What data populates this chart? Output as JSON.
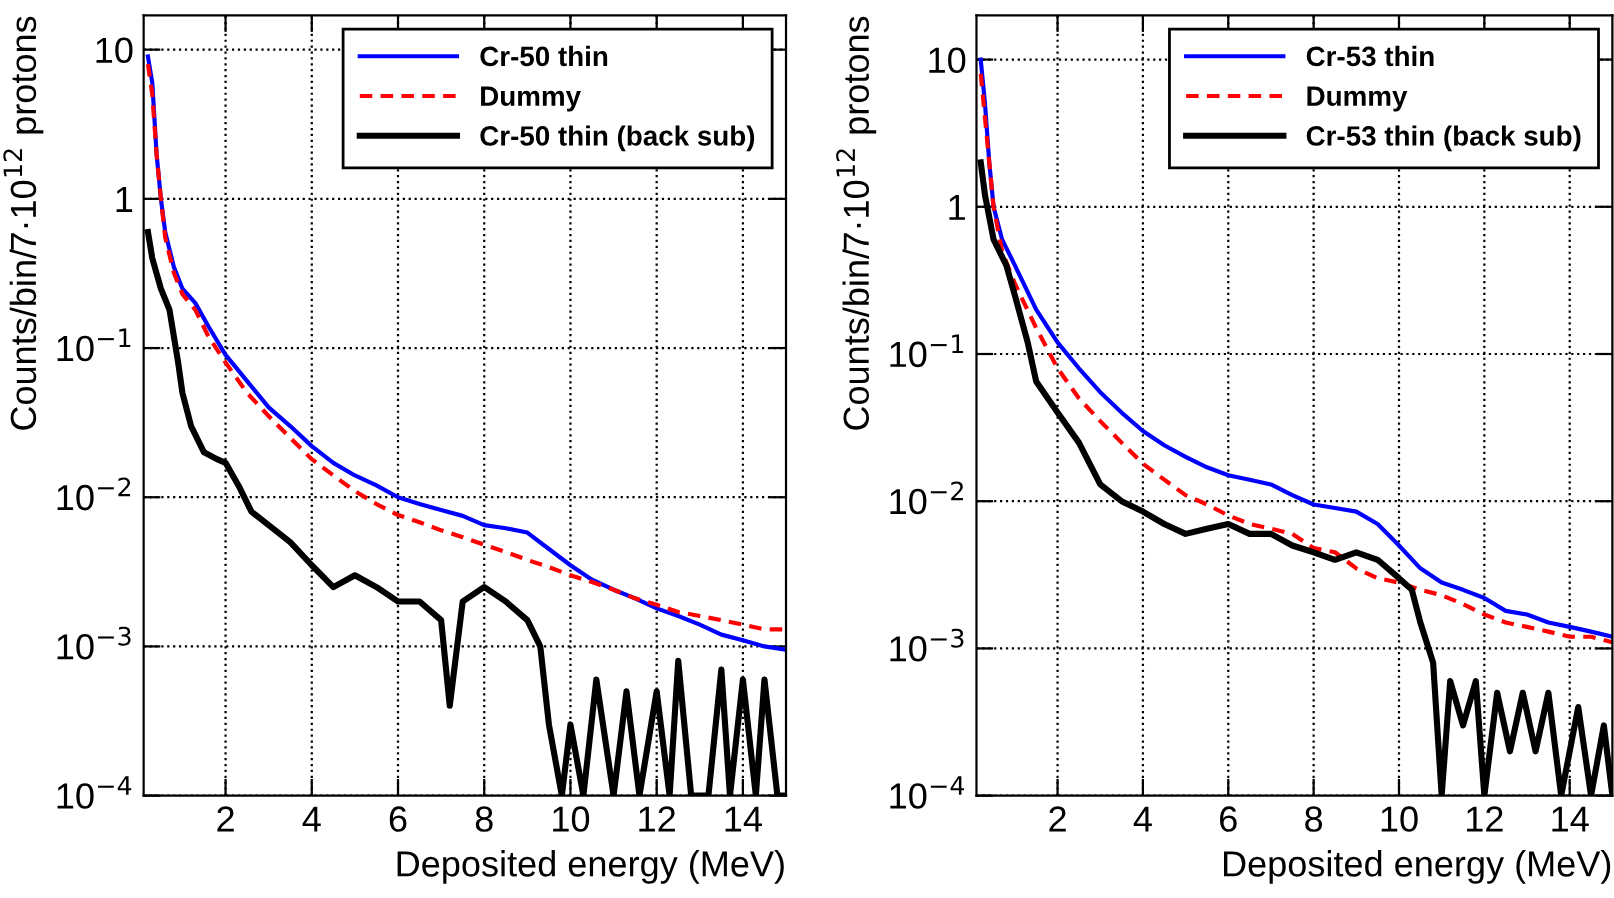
{
  "chart_data": [
    {
      "type": "line",
      "xlabel": "Deposited energy (MeV)",
      "ylabel": "Counts/bin/7·10$^{12}$ protons",
      "log": "y",
      "grid": true,
      "legend": "top right",
      "xlim": [
        0.1,
        15
      ],
      "xticks": [
        2,
        4,
        6,
        8,
        10,
        12,
        14
      ],
      "ylim": [
        0.0001,
        17
      ],
      "yticks": [
        {
          "value": 0.0001,
          "label": "10$^{−4}$"
        },
        {
          "value": 0.001,
          "label": "10$^{−3}$"
        },
        {
          "value": 0.01,
          "label": "10$^{−2}$"
        },
        {
          "value": 0.1,
          "label": "10$^{−1}$"
        },
        1,
        10
      ],
      "series": [
        {
          "name": "Cr-50 thin",
          "color": "#0000ff",
          "line_style": "solid",
          "x": [
            0.2,
            0.3,
            0.4,
            0.5,
            0.6,
            0.8,
            1.0,
            1.3,
            1.6,
            2.0,
            2.5,
            3.0,
            3.5,
            4.0,
            4.5,
            5.0,
            5.5,
            6.0,
            6.5,
            7.0,
            7.5,
            8.0,
            8.5,
            9.0,
            9.5,
            10.0,
            10.5,
            11.0,
            11.5,
            12.0,
            12.5,
            13.0,
            13.5,
            14.0,
            14.5,
            15.0
          ],
          "values": [
            9,
            6,
            2,
            1,
            0.6,
            0.35,
            0.25,
            0.2,
            0.14,
            0.09,
            0.06,
            0.04,
            0.03,
            0.022,
            0.017,
            0.014,
            0.012,
            0.01,
            0.009,
            0.0082,
            0.0075,
            0.0065,
            0.0062,
            0.0058,
            0.0045,
            0.0035,
            0.0028,
            0.0024,
            0.0021,
            0.0018,
            0.0016,
            0.0014,
            0.0012,
            0.0011,
            0.001,
            0.00095
          ]
        },
        {
          "name": "Dummy",
          "color": "#ff0000",
          "line_style": "dashed",
          "x": [
            0.2,
            0.3,
            0.4,
            0.5,
            0.6,
            0.8,
            1.0,
            1.3,
            1.6,
            2.0,
            2.5,
            3.0,
            3.5,
            4.0,
            4.5,
            5.0,
            5.5,
            6.0,
            6.5,
            7.0,
            7.5,
            8.0,
            8.5,
            9.0,
            9.5,
            10.0,
            10.5,
            11.0,
            11.5,
            12.0,
            12.5,
            13.0,
            13.5,
            14.0,
            14.5,
            15.0
          ],
          "values": [
            8,
            5,
            2,
            1,
            0.55,
            0.32,
            0.23,
            0.18,
            0.12,
            0.08,
            0.05,
            0.035,
            0.025,
            0.018,
            0.014,
            0.011,
            0.009,
            0.0076,
            0.0068,
            0.006,
            0.0054,
            0.0048,
            0.0043,
            0.0038,
            0.0034,
            0.003,
            0.0027,
            0.0024,
            0.0021,
            0.0019,
            0.0017,
            0.0016,
            0.0015,
            0.0014,
            0.0013,
            0.0013
          ]
        },
        {
          "name": "Cr-50 thin (back sub)",
          "color": "#000000",
          "line_style": "solid",
          "x": [
            0.2,
            0.3,
            0.5,
            0.7,
            0.9,
            1.0,
            1.2,
            1.5,
            1.8,
            2.0,
            2.3,
            2.6,
            3.0,
            3.5,
            4.0,
            4.5,
            5.0,
            5.5,
            6.0,
            6.5,
            7.0,
            7.2,
            7.5,
            8.0,
            8.5,
            9.0,
            9.3,
            9.5,
            9.8,
            10.0,
            10.3,
            10.6,
            11.0,
            11.3,
            11.6,
            12.0,
            12.3,
            12.5,
            12.8,
            13.2,
            13.5,
            13.7,
            14.0,
            14.3,
            14.5,
            14.8,
            15.0
          ],
          "values": [
            0.6,
            0.4,
            0.25,
            0.18,
            0.08,
            0.05,
            0.03,
            0.02,
            0.018,
            0.017,
            0.012,
            0.008,
            0.0065,
            0.005,
            0.0035,
            0.0025,
            0.003,
            0.0025,
            0.002,
            0.002,
            0.0015,
            0.0004,
            0.002,
            0.0025,
            0.002,
            0.0015,
            0.001,
            0.0003,
            0.0001,
            0.0003,
            0.0001,
            0.0006,
            0.0001,
            0.0005,
            0.0001,
            0.0005,
            0.0001,
            0.0008,
            0.0001,
            0.0001,
            0.0007,
            0.0001,
            0.0006,
            0.0001,
            0.0006,
            0.0001,
            0.0001
          ]
        }
      ]
    },
    {
      "type": "line",
      "xlabel": "Deposited energy (MeV)",
      "ylabel": "Counts/bin/7·10$^{12}$ protons",
      "log": "y",
      "grid": true,
      "legend": "top right",
      "xlim": [
        0.1,
        15
      ],
      "xticks": [
        2,
        4,
        6,
        8,
        10,
        12,
        14
      ],
      "ylim": [
        0.0001,
        20
      ],
      "yticks": [
        {
          "value": 0.0001,
          "label": "10$^{−4}$"
        },
        {
          "value": 0.001,
          "label": "10$^{−3}$"
        },
        {
          "value": 0.01,
          "label": "10$^{−2}$"
        },
        {
          "value": 0.1,
          "label": "10$^{−1}$"
        },
        1,
        10
      ],
      "series": [
        {
          "name": "Cr-53 thin",
          "color": "#0000ff",
          "line_style": "solid",
          "x": [
            0.2,
            0.3,
            0.4,
            0.5,
            0.7,
            1.0,
            1.5,
            2.0,
            2.5,
            3.0,
            3.5,
            4.0,
            4.5,
            5.0,
            5.5,
            6.0,
            6.5,
            7.0,
            7.5,
            8.0,
            8.5,
            9.0,
            9.5,
            10.0,
            10.5,
            11.0,
            11.5,
            12.0,
            12.5,
            13.0,
            13.5,
            14.0,
            14.5,
            15.0
          ],
          "values": [
            10,
            5,
            2,
            1,
            0.6,
            0.4,
            0.2,
            0.12,
            0.08,
            0.055,
            0.04,
            0.03,
            0.024,
            0.02,
            0.017,
            0.015,
            0.014,
            0.013,
            0.011,
            0.0095,
            0.009,
            0.0085,
            0.007,
            0.005,
            0.0035,
            0.0028,
            0.0025,
            0.0022,
            0.0018,
            0.0017,
            0.0015,
            0.0014,
            0.0013,
            0.0012
          ]
        },
        {
          "name": "Dummy",
          "color": "#ff0000",
          "line_style": "dashed",
          "x": [
            0.2,
            0.3,
            0.5,
            0.7,
            1.0,
            1.5,
            2.0,
            2.5,
            3.0,
            3.5,
            4.0,
            4.5,
            5.0,
            5.5,
            6.0,
            6.5,
            7.0,
            7.5,
            8.0,
            8.5,
            9.0,
            9.5,
            10.0,
            10.5,
            11.0,
            11.5,
            12.0,
            12.5,
            13.0,
            13.5,
            14.0,
            14.5,
            15.0
          ],
          "values": [
            8,
            4,
            1,
            0.5,
            0.3,
            0.15,
            0.08,
            0.05,
            0.035,
            0.025,
            0.018,
            0.014,
            0.011,
            0.0095,
            0.008,
            0.007,
            0.0065,
            0.006,
            0.0048,
            0.0045,
            0.0035,
            0.003,
            0.0028,
            0.0025,
            0.0023,
            0.002,
            0.0017,
            0.0015,
            0.0014,
            0.0013,
            0.0012,
            0.0012,
            0.0011
          ]
        },
        {
          "name": "Cr-53 thin (back sub)",
          "color": "#000000",
          "line_style": "solid",
          "x": [
            0.2,
            0.3,
            0.5,
            0.8,
            1.0,
            1.3,
            1.5,
            2.0,
            2.5,
            3.0,
            3.5,
            4.0,
            4.5,
            5.0,
            5.5,
            6.0,
            6.5,
            7.0,
            7.5,
            8.0,
            8.5,
            9.0,
            9.5,
            10.0,
            10.3,
            10.5,
            10.8,
            11.0,
            11.2,
            11.5,
            11.8,
            12.0,
            12.3,
            12.6,
            12.9,
            13.2,
            13.5,
            13.8,
            14.2,
            14.5,
            14.8,
            15.0
          ],
          "values": [
            2,
            1.2,
            0.6,
            0.4,
            0.25,
            0.12,
            0.065,
            0.04,
            0.025,
            0.013,
            0.01,
            0.0085,
            0.007,
            0.006,
            0.0065,
            0.007,
            0.006,
            0.006,
            0.005,
            0.0045,
            0.004,
            0.0045,
            0.004,
            0.003,
            0.0025,
            0.0015,
            0.0008,
            0.0001,
            0.0006,
            0.0003,
            0.0006,
            0.0001,
            0.0005,
            0.0002,
            0.0005,
            0.0002,
            0.0005,
            0.0001,
            0.0004,
            0.0001,
            0.0003,
            0.0001
          ]
        }
      ]
    }
  ]
}
